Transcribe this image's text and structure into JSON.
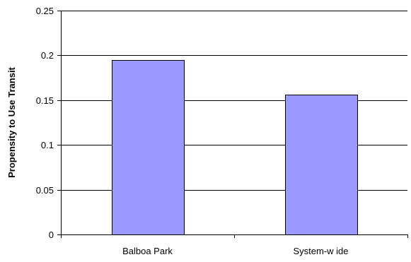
{
  "chart_data": {
    "type": "bar",
    "title": "",
    "xlabel": "",
    "ylabel": "Propensity to Use Transit",
    "categories": [
      "Balboa Park",
      "System-w ide"
    ],
    "values": [
      0.195,
      0.156
    ],
    "ylim": [
      0,
      0.25
    ],
    "yticks": [
      0,
      0.05,
      0.1,
      0.15,
      0.2,
      0.25
    ],
    "ytick_labels": [
      "0",
      "0.05",
      "0.1",
      "0.15",
      "0.2",
      "0.25"
    ],
    "grid": true,
    "legend": "none",
    "colors": {
      "bar_fill": "#9999ff",
      "bar_stroke": "#000000",
      "grid": "#000000",
      "axis": "#000000"
    }
  }
}
